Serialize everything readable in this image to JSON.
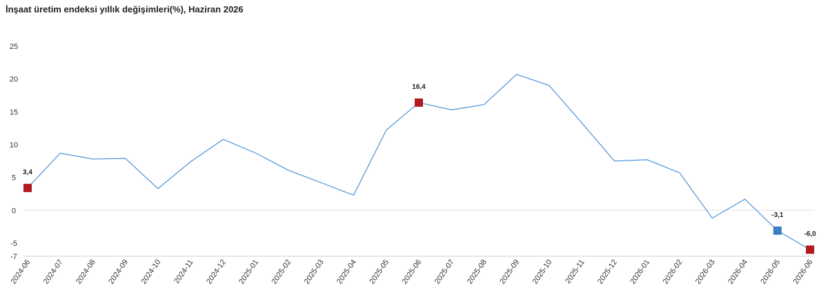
{
  "chart_data": {
    "type": "line",
    "title": "İnşaat üretim endeksi yıllık değişimleri(%), Haziran 2026",
    "categories": [
      "2024-06",
      "2024-07",
      "2024-08",
      "2024-09",
      "2024-10",
      "2024-11",
      "2024-12",
      "2025-01",
      "2025-02",
      "2025-03",
      "2025-04",
      "2025-05",
      "2025-06",
      "2025-07",
      "2025-08",
      "2025-09",
      "2025-10",
      "2025-11",
      "2025-12",
      "2026-01",
      "2026-02",
      "2026-03",
      "2026-04",
      "2026-05",
      "2026-06"
    ],
    "values": [
      3.4,
      8.7,
      7.8,
      7.9,
      3.3,
      7.4,
      10.8,
      8.7,
      6.1,
      4.2,
      2.3,
      12.2,
      16.4,
      15.3,
      16.1,
      20.7,
      19.0,
      13.3,
      7.5,
      7.7,
      5.7,
      -1.2,
      1.7,
      -3.1,
      -6.0
    ],
    "value_labels": [
      "3,4",
      null,
      null,
      null,
      null,
      null,
      null,
      null,
      null,
      null,
      null,
      null,
      "16,4",
      null,
      null,
      null,
      null,
      null,
      null,
      null,
      null,
      null,
      null,
      "-3,1",
      "-6,0"
    ],
    "point_colors": [
      "#b0191e",
      null,
      null,
      null,
      null,
      null,
      null,
      null,
      null,
      null,
      null,
      null,
      "#b0191e",
      null,
      null,
      null,
      null,
      null,
      null,
      null,
      null,
      null,
      null,
      "#3a7fc1",
      "#b0191e"
    ],
    "color": "#4a90d9",
    "ylim": [
      -7,
      25
    ],
    "yticks": [
      25,
      20,
      15,
      10,
      5,
      0,
      -5,
      -7
    ]
  }
}
